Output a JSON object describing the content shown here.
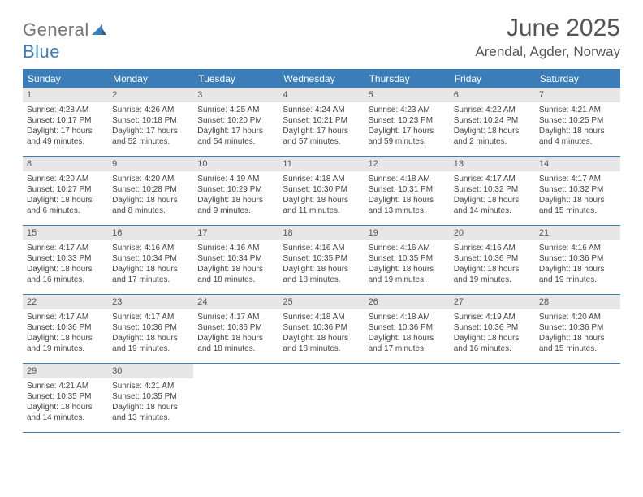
{
  "brand": {
    "part1": "General",
    "part2": "Blue"
  },
  "month_title": "June 2025",
  "location": "Arendal, Agder, Norway",
  "colors": {
    "header_bg": "#3a7db8",
    "header_text": "#ffffff",
    "daynum_bg": "#e7e7e7",
    "border": "#3a7db8",
    "body_text": "#444444"
  },
  "weekdays": [
    "Sunday",
    "Monday",
    "Tuesday",
    "Wednesday",
    "Thursday",
    "Friday",
    "Saturday"
  ],
  "weeks": [
    [
      {
        "n": "1",
        "sr": "Sunrise: 4:28 AM",
        "ss": "Sunset: 10:17 PM",
        "dl1": "Daylight: 17 hours",
        "dl2": "and 49 minutes."
      },
      {
        "n": "2",
        "sr": "Sunrise: 4:26 AM",
        "ss": "Sunset: 10:18 PM",
        "dl1": "Daylight: 17 hours",
        "dl2": "and 52 minutes."
      },
      {
        "n": "3",
        "sr": "Sunrise: 4:25 AM",
        "ss": "Sunset: 10:20 PM",
        "dl1": "Daylight: 17 hours",
        "dl2": "and 54 minutes."
      },
      {
        "n": "4",
        "sr": "Sunrise: 4:24 AM",
        "ss": "Sunset: 10:21 PM",
        "dl1": "Daylight: 17 hours",
        "dl2": "and 57 minutes."
      },
      {
        "n": "5",
        "sr": "Sunrise: 4:23 AM",
        "ss": "Sunset: 10:23 PM",
        "dl1": "Daylight: 17 hours",
        "dl2": "and 59 minutes."
      },
      {
        "n": "6",
        "sr": "Sunrise: 4:22 AM",
        "ss": "Sunset: 10:24 PM",
        "dl1": "Daylight: 18 hours",
        "dl2": "and 2 minutes."
      },
      {
        "n": "7",
        "sr": "Sunrise: 4:21 AM",
        "ss": "Sunset: 10:25 PM",
        "dl1": "Daylight: 18 hours",
        "dl2": "and 4 minutes."
      }
    ],
    [
      {
        "n": "8",
        "sr": "Sunrise: 4:20 AM",
        "ss": "Sunset: 10:27 PM",
        "dl1": "Daylight: 18 hours",
        "dl2": "and 6 minutes."
      },
      {
        "n": "9",
        "sr": "Sunrise: 4:20 AM",
        "ss": "Sunset: 10:28 PM",
        "dl1": "Daylight: 18 hours",
        "dl2": "and 8 minutes."
      },
      {
        "n": "10",
        "sr": "Sunrise: 4:19 AM",
        "ss": "Sunset: 10:29 PM",
        "dl1": "Daylight: 18 hours",
        "dl2": "and 9 minutes."
      },
      {
        "n": "11",
        "sr": "Sunrise: 4:18 AM",
        "ss": "Sunset: 10:30 PM",
        "dl1": "Daylight: 18 hours",
        "dl2": "and 11 minutes."
      },
      {
        "n": "12",
        "sr": "Sunrise: 4:18 AM",
        "ss": "Sunset: 10:31 PM",
        "dl1": "Daylight: 18 hours",
        "dl2": "and 13 minutes."
      },
      {
        "n": "13",
        "sr": "Sunrise: 4:17 AM",
        "ss": "Sunset: 10:32 PM",
        "dl1": "Daylight: 18 hours",
        "dl2": "and 14 minutes."
      },
      {
        "n": "14",
        "sr": "Sunrise: 4:17 AM",
        "ss": "Sunset: 10:32 PM",
        "dl1": "Daylight: 18 hours",
        "dl2": "and 15 minutes."
      }
    ],
    [
      {
        "n": "15",
        "sr": "Sunrise: 4:17 AM",
        "ss": "Sunset: 10:33 PM",
        "dl1": "Daylight: 18 hours",
        "dl2": "and 16 minutes."
      },
      {
        "n": "16",
        "sr": "Sunrise: 4:16 AM",
        "ss": "Sunset: 10:34 PM",
        "dl1": "Daylight: 18 hours",
        "dl2": "and 17 minutes."
      },
      {
        "n": "17",
        "sr": "Sunrise: 4:16 AM",
        "ss": "Sunset: 10:34 PM",
        "dl1": "Daylight: 18 hours",
        "dl2": "and 18 minutes."
      },
      {
        "n": "18",
        "sr": "Sunrise: 4:16 AM",
        "ss": "Sunset: 10:35 PM",
        "dl1": "Daylight: 18 hours",
        "dl2": "and 18 minutes."
      },
      {
        "n": "19",
        "sr": "Sunrise: 4:16 AM",
        "ss": "Sunset: 10:35 PM",
        "dl1": "Daylight: 18 hours",
        "dl2": "and 19 minutes."
      },
      {
        "n": "20",
        "sr": "Sunrise: 4:16 AM",
        "ss": "Sunset: 10:36 PM",
        "dl1": "Daylight: 18 hours",
        "dl2": "and 19 minutes."
      },
      {
        "n": "21",
        "sr": "Sunrise: 4:16 AM",
        "ss": "Sunset: 10:36 PM",
        "dl1": "Daylight: 18 hours",
        "dl2": "and 19 minutes."
      }
    ],
    [
      {
        "n": "22",
        "sr": "Sunrise: 4:17 AM",
        "ss": "Sunset: 10:36 PM",
        "dl1": "Daylight: 18 hours",
        "dl2": "and 19 minutes."
      },
      {
        "n": "23",
        "sr": "Sunrise: 4:17 AM",
        "ss": "Sunset: 10:36 PM",
        "dl1": "Daylight: 18 hours",
        "dl2": "and 19 minutes."
      },
      {
        "n": "24",
        "sr": "Sunrise: 4:17 AM",
        "ss": "Sunset: 10:36 PM",
        "dl1": "Daylight: 18 hours",
        "dl2": "and 18 minutes."
      },
      {
        "n": "25",
        "sr": "Sunrise: 4:18 AM",
        "ss": "Sunset: 10:36 PM",
        "dl1": "Daylight: 18 hours",
        "dl2": "and 18 minutes."
      },
      {
        "n": "26",
        "sr": "Sunrise: 4:18 AM",
        "ss": "Sunset: 10:36 PM",
        "dl1": "Daylight: 18 hours",
        "dl2": "and 17 minutes."
      },
      {
        "n": "27",
        "sr": "Sunrise: 4:19 AM",
        "ss": "Sunset: 10:36 PM",
        "dl1": "Daylight: 18 hours",
        "dl2": "and 16 minutes."
      },
      {
        "n": "28",
        "sr": "Sunrise: 4:20 AM",
        "ss": "Sunset: 10:36 PM",
        "dl1": "Daylight: 18 hours",
        "dl2": "and 15 minutes."
      }
    ],
    [
      {
        "n": "29",
        "sr": "Sunrise: 4:21 AM",
        "ss": "Sunset: 10:35 PM",
        "dl1": "Daylight: 18 hours",
        "dl2": "and 14 minutes."
      },
      {
        "n": "30",
        "sr": "Sunrise: 4:21 AM",
        "ss": "Sunset: 10:35 PM",
        "dl1": "Daylight: 18 hours",
        "dl2": "and 13 minutes."
      },
      null,
      null,
      null,
      null,
      null
    ]
  ]
}
